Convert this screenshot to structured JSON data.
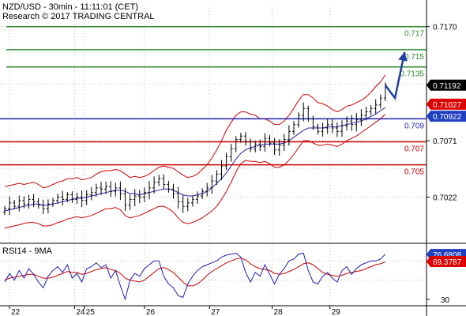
{
  "header": {
    "title": "NZD/USD - 30min - 11:11:01 (CET)",
    "subtitle": "Research © 2017 TRADING CENTRAL"
  },
  "colors": {
    "price": "#000000",
    "bands": "#cc0000",
    "ma": "#1f1fb0",
    "resistance": "#2e8b2e",
    "pivot": "#1f1fb0",
    "support": "#cc0000",
    "arrow": "#1f3fa0",
    "last_price_bg": "#000000",
    "label_red_bg": "#dd0000",
    "label_blue_bg": "#2040c0",
    "rsi": "#1f1fb0",
    "rsi_ma": "#cc0000"
  },
  "chart_data": [
    {
      "type": "line",
      "name": "price",
      "y_axis_ticks": [
        "0.7170",
        "0.7071",
        "0.7022"
      ],
      "y_axis_tick_values": [
        0.717,
        0.7071,
        0.7022
      ],
      "ylim": [
        0.6986,
        0.7189
      ],
      "x_tick_labels": [
        "22",
        "24",
        "25",
        "26",
        "27",
        "28",
        "29"
      ],
      "x_tick_positions": [
        1,
        14.5,
        16.5,
        29,
        42.5,
        55.5,
        67.5
      ],
      "xlim": [
        0,
        80
      ],
      "grid": true,
      "levels": [
        {
          "label": "0.717",
          "value": 0.717,
          "role": "resistance"
        },
        {
          "label": "0.715",
          "value": 0.715,
          "role": "resistance"
        },
        {
          "label": "0.7135",
          "value": 0.7135,
          "role": "resistance"
        },
        {
          "label": "0.709",
          "value": 0.709,
          "role": "pivot"
        },
        {
          "label": "0.707",
          "value": 0.707,
          "role": "support"
        },
        {
          "label": "0.705",
          "value": 0.705,
          "role": "support"
        }
      ],
      "axis_labels": [
        {
          "text": "0.71192",
          "value": 0.71192,
          "style": "last"
        },
        {
          "text": "0.71027",
          "value": 0.71027,
          "style": "red"
        },
        {
          "text": "0.70922",
          "value": 0.70922,
          "style": "blue"
        }
      ],
      "close": [
        0.7012,
        0.7017,
        0.7014,
        0.7019,
        0.7016,
        0.702,
        0.7018,
        0.7015,
        0.7012,
        0.7016,
        0.7019,
        0.7022,
        0.702,
        0.7024,
        0.702,
        0.7022,
        0.7019,
        0.7024,
        0.7026,
        0.703,
        0.7029,
        0.7031,
        0.7027,
        0.703,
        0.7025,
        0.7015,
        0.702,
        0.7023,
        0.7022,
        0.7026,
        0.703,
        0.7035,
        0.7038,
        0.7033,
        0.7029,
        0.7025,
        0.7018,
        0.7014,
        0.7017,
        0.702,
        0.7023,
        0.7027,
        0.703,
        0.7036,
        0.7042,
        0.7049,
        0.7057,
        0.7064,
        0.7072,
        0.7075,
        0.707,
        0.7064,
        0.7068,
        0.7066,
        0.7073,
        0.7069,
        0.7063,
        0.7067,
        0.7072,
        0.7079,
        0.7085,
        0.7093,
        0.7099,
        0.709,
        0.7083,
        0.7079,
        0.7082,
        0.7085,
        0.7082,
        0.7079,
        0.7084,
        0.7088,
        0.7085,
        0.7089,
        0.7093,
        0.7096,
        0.7099,
        0.7102,
        0.7108,
        0.7119
      ],
      "upper_band": [
        0.7031,
        0.7032,
        0.7033,
        0.7034,
        0.7033,
        0.7034,
        0.7035,
        0.7033,
        0.703,
        0.7031,
        0.7033,
        0.7035,
        0.7036,
        0.7038,
        0.7038,
        0.7039,
        0.7037,
        0.7038,
        0.7039,
        0.7042,
        0.7044,
        0.7045,
        0.7045,
        0.7046,
        0.7045,
        0.7042,
        0.7039,
        0.704,
        0.7039,
        0.704,
        0.7042,
        0.7045,
        0.7048,
        0.7049,
        0.7048,
        0.7047,
        0.7044,
        0.7041,
        0.7039,
        0.704,
        0.7042,
        0.7046,
        0.705,
        0.7056,
        0.7063,
        0.7071,
        0.708,
        0.7087,
        0.7093,
        0.7096,
        0.7096,
        0.7094,
        0.7093,
        0.709,
        0.709,
        0.7088,
        0.7085,
        0.7085,
        0.7088,
        0.7093,
        0.7099,
        0.7106,
        0.7111,
        0.7111,
        0.7108,
        0.7104,
        0.7103,
        0.7101,
        0.7098,
        0.7096,
        0.7098,
        0.7101,
        0.7102,
        0.7104,
        0.7106,
        0.7109,
        0.7113,
        0.7118,
        0.7122,
        0.7128
      ],
      "lower_band": [
        0.6995,
        0.6996,
        0.6997,
        0.6998,
        0.6999,
        0.7,
        0.7,
        0.6999,
        0.6997,
        0.6997,
        0.6998,
        0.7,
        0.7001,
        0.7003,
        0.7004,
        0.7005,
        0.7004,
        0.7005,
        0.7006,
        0.7008,
        0.701,
        0.7012,
        0.7012,
        0.7013,
        0.7011,
        0.7006,
        0.7004,
        0.7005,
        0.7006,
        0.7008,
        0.701,
        0.7012,
        0.7014,
        0.7014,
        0.7012,
        0.7009,
        0.7004,
        0.7,
        0.6999,
        0.7,
        0.7002,
        0.7004,
        0.7007,
        0.701,
        0.7014,
        0.702,
        0.7027,
        0.7035,
        0.7044,
        0.7051,
        0.7054,
        0.7053,
        0.7053,
        0.7052,
        0.7053,
        0.7051,
        0.7048,
        0.7048,
        0.705,
        0.7054,
        0.7059,
        0.7065,
        0.7071,
        0.7071,
        0.7069,
        0.7067,
        0.7067,
        0.7068,
        0.7067,
        0.7066,
        0.7068,
        0.7071,
        0.7073,
        0.7075,
        0.7078,
        0.7081,
        0.7084,
        0.7087,
        0.709,
        0.7094
      ],
      "ma": [
        0.701,
        0.7011,
        0.7012,
        0.7013,
        0.7014,
        0.7015,
        0.7016,
        0.7016,
        0.7015,
        0.7015,
        0.7016,
        0.7017,
        0.7018,
        0.7019,
        0.702,
        0.7021,
        0.7021,
        0.7022,
        0.7023,
        0.7024,
        0.7025,
        0.7026,
        0.7027,
        0.7028,
        0.7028,
        0.7027,
        0.7025,
        0.7025,
        0.7024,
        0.7025,
        0.7026,
        0.7027,
        0.7028,
        0.7029,
        0.7029,
        0.7028,
        0.7026,
        0.7024,
        0.7023,
        0.7023,
        0.7024,
        0.7025,
        0.7027,
        0.703,
        0.7034,
        0.7038,
        0.7043,
        0.7049,
        0.7055,
        0.706,
        0.7063,
        0.7065,
        0.7066,
        0.7067,
        0.7068,
        0.7068,
        0.7068,
        0.7068,
        0.7069,
        0.7071,
        0.7074,
        0.7077,
        0.708,
        0.7082,
        0.7082,
        0.7082,
        0.7082,
        0.7083,
        0.7083,
        0.7083,
        0.7084,
        0.7085,
        0.7086,
        0.7087,
        0.7088,
        0.709,
        0.7092,
        0.7094,
        0.7097,
        0.71
      ],
      "projection": [
        [
          79,
          0.7119
        ],
        [
          81,
          0.7108
        ],
        [
          83,
          0.7148
        ]
      ]
    },
    {
      "type": "line",
      "name": "rsi",
      "title": "RSI14 - 9MA",
      "y_axis_ticks": [
        "30"
      ],
      "y_axis_tick_values": [
        30
      ],
      "ylim": [
        25,
        85
      ],
      "grid": true,
      "axis_labels": [
        {
          "text": "76.6808",
          "value": 76.6808,
          "style": "blue"
        },
        {
          "text": "69.3787",
          "value": 69.3787,
          "style": "red"
        }
      ],
      "rsi": [
        48,
        57,
        50,
        60,
        52,
        62,
        56,
        48,
        42,
        54,
        60,
        64,
        58,
        66,
        52,
        57,
        48,
        62,
        64,
        68,
        63,
        66,
        52,
        60,
        44,
        30,
        50,
        57,
        54,
        62,
        66,
        70,
        70,
        54,
        46,
        42,
        34,
        32,
        46,
        54,
        60,
        64,
        66,
        68,
        70,
        74,
        76,
        77,
        78,
        74,
        58,
        48,
        58,
        54,
        66,
        56,
        46,
        56,
        62,
        70,
        72,
        77,
        78,
        60,
        48,
        46,
        54,
        58,
        52,
        48,
        60,
        64,
        56,
        62,
        66,
        68,
        70,
        70,
        72,
        77
      ],
      "rsi_ma": [
        50,
        52,
        53,
        54,
        55,
        56,
        56,
        54,
        52,
        52,
        53,
        55,
        57,
        59,
        58,
        58,
        56,
        57,
        59,
        61,
        62,
        63,
        61,
        60,
        57,
        52,
        50,
        49,
        48,
        50,
        54,
        58,
        62,
        63,
        61,
        58,
        53,
        48,
        44,
        44,
        46,
        50,
        55,
        59,
        62,
        65,
        68,
        70,
        72,
        73,
        71,
        67,
        64,
        62,
        61,
        60,
        57,
        56,
        57,
        59,
        61,
        64,
        67,
        68,
        66,
        62,
        58,
        56,
        55,
        54,
        55,
        57,
        58,
        59,
        60,
        62,
        64,
        66,
        67,
        69
      ]
    }
  ]
}
